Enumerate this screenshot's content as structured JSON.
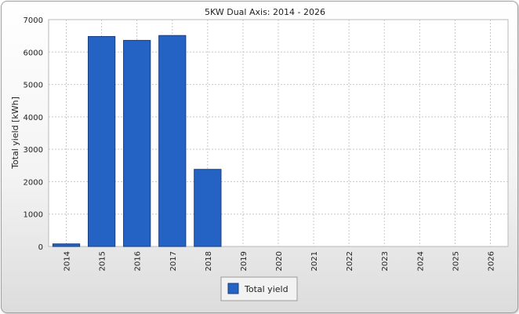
{
  "chart_data": {
    "type": "bar",
    "title": "5KW Dual Axis: 2014 - 2026",
    "ylabel": "Total yield [kWh]",
    "xlabel": "",
    "ylim": [
      0,
      7000
    ],
    "yticks": [
      0,
      1000,
      2000,
      3000,
      4000,
      5000,
      6000,
      7000
    ],
    "categories": [
      "2014",
      "2015",
      "2016",
      "2017",
      "2018",
      "2019",
      "2020",
      "2021",
      "2022",
      "2023",
      "2024",
      "2025",
      "2026"
    ],
    "series": [
      {
        "name": "Total yield",
        "color": "#2462c4",
        "values": [
          80,
          6480,
          6360,
          6510,
          2380,
          0,
          0,
          0,
          0,
          0,
          0,
          0,
          0
        ]
      }
    ],
    "grid": true,
    "legend_position": "bottom"
  }
}
